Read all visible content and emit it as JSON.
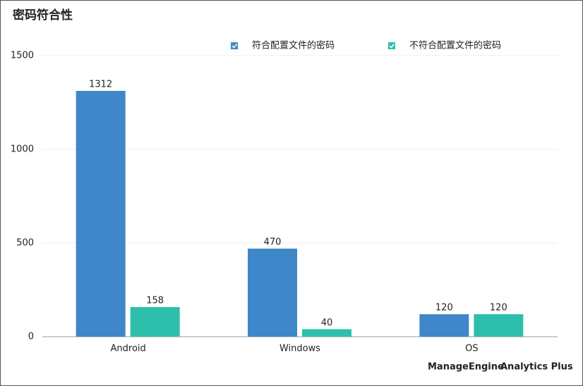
{
  "chart_data": {
    "type": "bar",
    "title": "密码符合性",
    "categories": [
      "Android",
      "Windows",
      "OS"
    ],
    "series": [
      {
        "name": "符合配置文件的密码",
        "color": "#3f87c8",
        "values": [
          1312,
          470,
          120
        ]
      },
      {
        "name": "不符合配置文件的密码",
        "color": "#2ebfac",
        "values": [
          158,
          40,
          120
        ]
      }
    ],
    "ylim": [
      0,
      1500
    ],
    "yticks": [
      0,
      500,
      1000,
      1500
    ],
    "grid": true,
    "legend": "top"
  },
  "footer": {
    "brand": "ManageEngine",
    "product": "Analytics Plus"
  }
}
